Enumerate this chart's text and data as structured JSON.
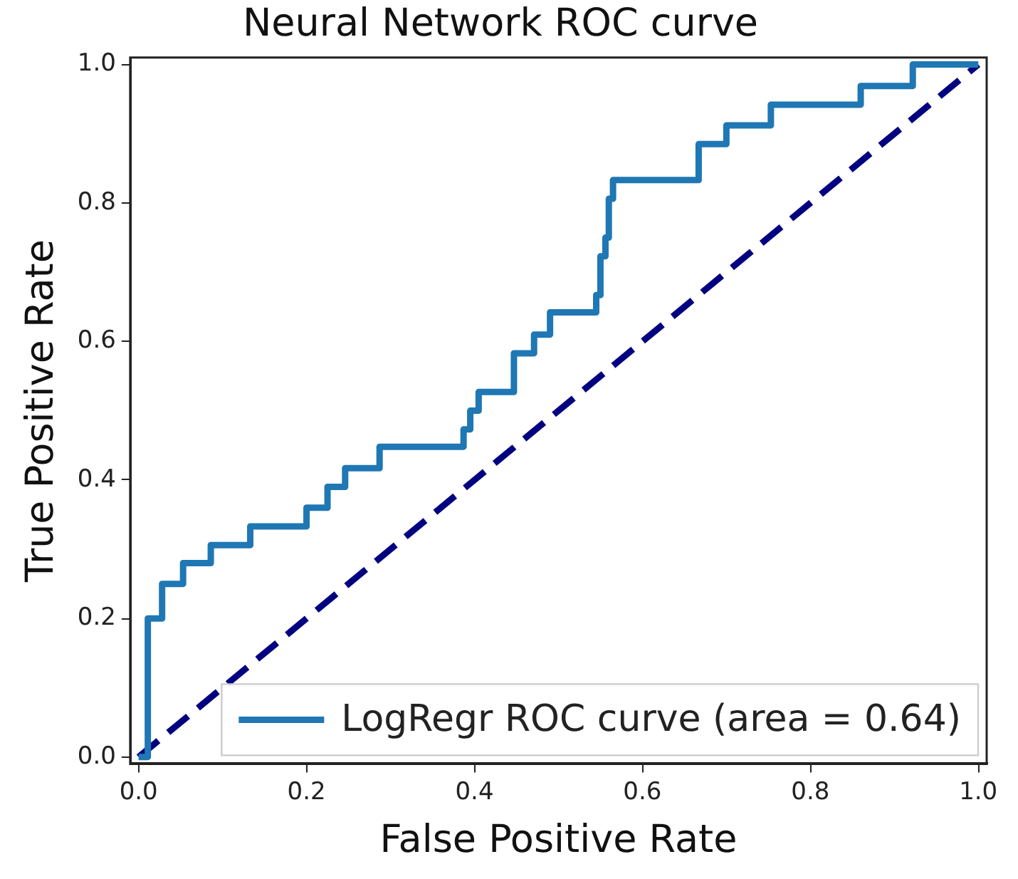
{
  "chart_data": {
    "type": "line",
    "title": "Neural Network ROC curve",
    "xlabel": "False Positive Rate",
    "ylabel": "True Positive Rate",
    "xlim": [
      -0.01,
      1.01
    ],
    "ylim": [
      -0.01,
      1.01
    ],
    "xticks": [
      {
        "value": 0,
        "label": "0.0"
      },
      {
        "value": 0.2,
        "label": "0.2"
      },
      {
        "value": 0.4,
        "label": "0.4"
      },
      {
        "value": 0.6,
        "label": "0.6"
      },
      {
        "value": 0.8,
        "label": "0.8"
      },
      {
        "value": 1,
        "label": "1.0"
      }
    ],
    "yticks": [
      {
        "value": 0,
        "label": "0.0"
      },
      {
        "value": 0.2,
        "label": "0.2"
      },
      {
        "value": 0.4,
        "label": "0.4"
      },
      {
        "value": 0.6,
        "label": "0.6"
      },
      {
        "value": 0.8,
        "label": "0.8"
      },
      {
        "value": 1,
        "label": "1.0"
      }
    ],
    "legend": "bottom right",
    "marker": "none",
    "series": [
      {
        "name": "LogRegr ROC curve (area = 0.64)",
        "color": "#1f77b4",
        "type": "step",
        "line_style": "solid",
        "x": [
          0,
          0.011,
          0.028,
          0.053,
          0.086,
          0.133,
          0.2,
          0.225,
          0.246,
          0.287,
          0.387,
          0.395,
          0.405,
          0.447,
          0.471,
          0.49,
          0.545,
          0.55,
          0.556,
          0.56,
          0.565,
          0.667,
          0.7,
          0.753,
          0.86,
          0.922,
          1.0
        ],
        "values": [
          0,
          0.2,
          0.25,
          0.28,
          0.306,
          0.333,
          0.36,
          0.39,
          0.417,
          0.448,
          0.473,
          0.5,
          0.527,
          0.583,
          0.61,
          0.642,
          0.667,
          0.723,
          0.75,
          0.806,
          0.833,
          0.885,
          0.912,
          0.942,
          0.969,
          1.0,
          1.0
        ]
      },
      {
        "color": "#000080",
        "type": "line",
        "line_style": "dashed",
        "x": [
          0,
          1
        ],
        "values": [
          0,
          1
        ]
      }
    ]
  }
}
